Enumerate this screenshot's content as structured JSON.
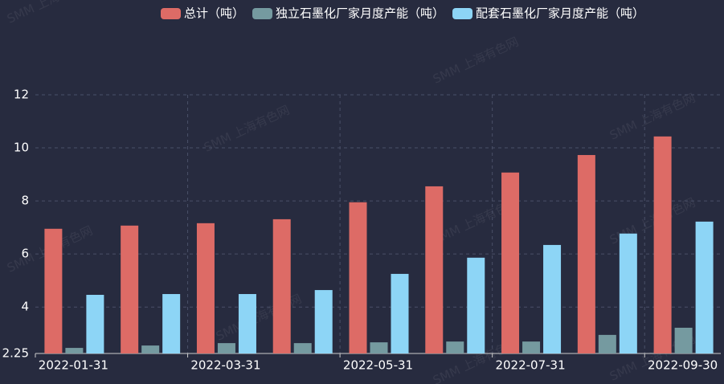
{
  "chart_data": {
    "type": "bar",
    "watermark": "SMM 上海有色网",
    "categories": [
      "2022-01-31",
      null,
      "2022-03-31",
      null,
      "2022-05-31",
      null,
      "2022-07-31",
      null,
      "2022-09-30"
    ],
    "series": [
      {
        "name": "总计（吨）",
        "color": "#dd6b66",
        "values": [
          6.95,
          7.07,
          7.16,
          7.31,
          7.95,
          8.55,
          9.07,
          9.73,
          10.43
        ]
      },
      {
        "name": "独立石墨化厂家月度产能（吨）",
        "color": "#759aa0",
        "values": [
          2.46,
          2.55,
          2.64,
          2.64,
          2.67,
          2.7,
          2.7,
          2.95,
          3.22
        ]
      },
      {
        "name": "配套石墨化厂家月度产能（吨）",
        "color": "#8dd5f6",
        "values": [
          4.46,
          4.49,
          4.49,
          4.64,
          5.25,
          5.86,
          6.34,
          6.77,
          7.22
        ]
      }
    ],
    "ylim": [
      2.25,
      12
    ],
    "yticks": [
      {
        "value": 2.25,
        "label": "2.25"
      },
      4,
      6,
      8,
      10,
      12
    ],
    "grid": true
  }
}
